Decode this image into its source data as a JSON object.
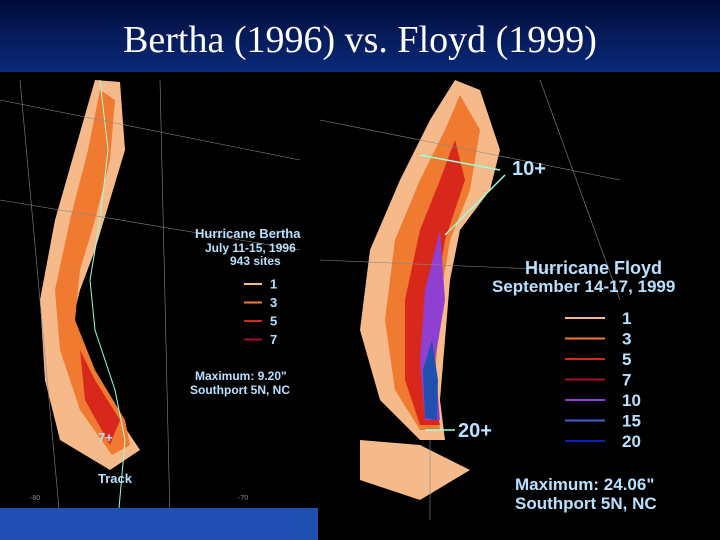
{
  "title": "Bertha (1996) vs. Floyd (1999)",
  "bertha": {
    "name": "Hurricane Bertha",
    "dates": "July 11-15, 1996",
    "sites": "943 sites",
    "legend": [
      {
        "label": "1",
        "color": "#f6b98a"
      },
      {
        "label": "3",
        "color": "#f07a30"
      },
      {
        "label": "5",
        "color": "#d8281c"
      },
      {
        "label": "7",
        "color": "#a0102a"
      }
    ],
    "maximum": "Maximum:  9.20\"",
    "station": "Southport 5N, NC",
    "peak": "7+",
    "track": "Track"
  },
  "floyd": {
    "name": "Hurricane Floyd",
    "dates": "September 14-17, 1999",
    "legend": [
      {
        "label": "1",
        "color": "#f6b98a"
      },
      {
        "label": "3",
        "color": "#f07a30"
      },
      {
        "label": "5",
        "color": "#d8281c"
      },
      {
        "label": "7",
        "color": "#a0102a"
      },
      {
        "label": "10",
        "color": "#9040d0"
      },
      {
        "label": "15",
        "color": "#4060d0"
      },
      {
        "label": "20",
        "color": "#1020c0"
      }
    ],
    "maximum": "Maximum:  24.06\"",
    "station": "Southport 5N, NC",
    "peak_north": "10+",
    "peak_south": "20+"
  },
  "axis_labels": [
    "-80",
    "-70"
  ]
}
